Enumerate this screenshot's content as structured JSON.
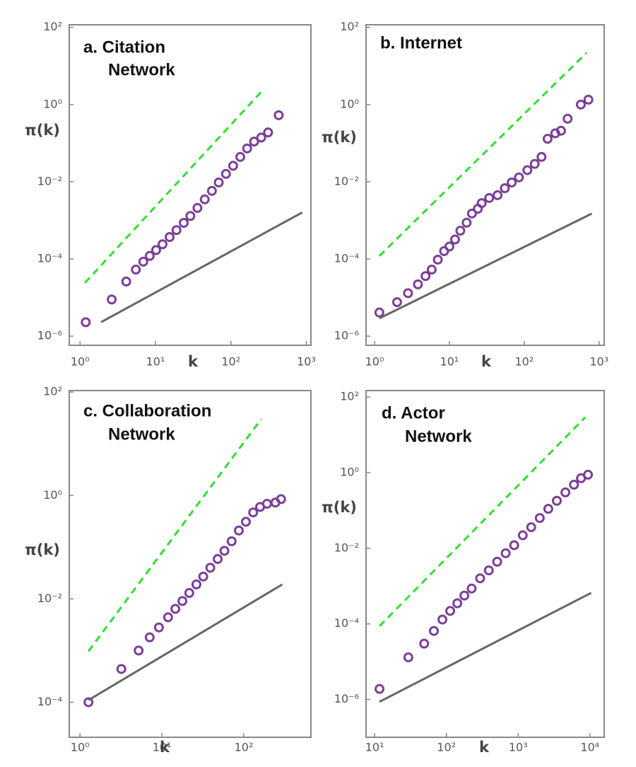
{
  "chart_data": [
    {
      "type": "scatter",
      "title": [
        "a. Citation",
        "Network"
      ],
      "xlabel": "k",
      "ylabel": "π(k)",
      "xscale": "log",
      "yscale": "log",
      "xlim": [
        0.72,
        1150
      ],
      "ylim": [
        5.8e-07,
        117
      ],
      "xticks": [
        {
          "value": 1,
          "label": "10⁰"
        },
        {
          "value": 10,
          "label": "10¹"
        },
        {
          "value": 100,
          "label": "10²"
        },
        {
          "value": 1000,
          "label": "10³"
        }
      ],
      "yticks": [
        {
          "value": 1e-06,
          "label": "10⁻⁶"
        },
        {
          "value": 0.0001,
          "label": "10⁻⁴"
        },
        {
          "value": 0.01,
          "label": "10⁻²"
        },
        {
          "value": 1,
          "label": "10⁰"
        },
        {
          "value": 100,
          "label": "10²"
        }
      ],
      "series": [
        {
          "color": "#7b3f98",
          "marker": "circle",
          "x": [
            1.19,
            2.63,
            4.1,
            5.5,
            6.9,
            8.4,
            10.2,
            12.4,
            15.4,
            19,
            23.7,
            29,
            36,
            45,
            56,
            69,
            86,
            107,
            133,
            164,
            203,
            252,
            311,
            430
          ],
          "values": [
            2.3e-06,
            8.9e-06,
            2.6e-05,
            5.3e-05,
            8.5e-05,
            0.00012,
            0.00017,
            0.00024,
            0.00037,
            0.00056,
            0.00086,
            0.0013,
            0.0021,
            0.0035,
            0.0058,
            0.0096,
            0.016,
            0.026,
            0.044,
            0.073,
            0.11,
            0.14,
            0.19,
            0.53
          ]
        },
        {
          "color": "#33dd33",
          "line_style": "dashed",
          "x": [
            1.16,
            250
          ],
          "values": [
            2.4e-05,
            2.1
          ]
        },
        {
          "color": "#666666",
          "line_style": "solid",
          "x": [
            1.9,
            880
          ],
          "values": [
            2.3e-06,
            0.0016
          ]
        }
      ]
    },
    {
      "type": "scatter",
      "title": [
        "b. Internet"
      ],
      "xlabel": "k",
      "ylabel": "π(k)",
      "xscale": "log",
      "yscale": "log",
      "xlim": [
        0.77,
        1170
      ],
      "ylim": [
        5.8e-07,
        117
      ],
      "xticks": [
        {
          "value": 1,
          "label": "10⁰"
        },
        {
          "value": 10,
          "label": "10¹"
        },
        {
          "value": 100,
          "label": "10²"
        },
        {
          "value": 1000,
          "label": "10³"
        }
      ],
      "yticks": [
        {
          "value": 1e-06,
          "label": "10⁻⁶"
        },
        {
          "value": 0.0001,
          "label": "10⁻⁴"
        },
        {
          "value": 0.01,
          "label": "10⁻²"
        },
        {
          "value": 1,
          "label": "10⁰"
        },
        {
          "value": 100,
          "label": "10²"
        }
      ],
      "series": [
        {
          "color": "#7b3f98",
          "marker": "circle",
          "x": [
            1.16,
            2.0,
            2.8,
            3.8,
            4.8,
            5.8,
            7.0,
            8.5,
            10,
            11.9,
            14,
            17,
            20,
            24,
            27,
            34,
            44,
            55,
            68,
            85,
            110,
            138,
            170,
            205,
            260,
            310,
            380,
            570,
            720
          ],
          "values": [
            4.1e-06,
            7.6e-06,
            1.3e-05,
            2.2e-05,
            3.6e-05,
            5.3e-05,
            9.6e-05,
            0.00016,
            0.00021,
            0.00032,
            0.00054,
            0.00087,
            0.0015,
            0.002,
            0.0028,
            0.0038,
            0.0045,
            0.0068,
            0.0096,
            0.013,
            0.02,
            0.029,
            0.044,
            0.13,
            0.18,
            0.21,
            0.43,
            1.0,
            1.34
          ]
        },
        {
          "color": "#33dd33",
          "line_style": "dashed",
          "x": [
            1.16,
            680
          ],
          "values": [
            0.00012,
            22
          ]
        },
        {
          "color": "#666666",
          "line_style": "solid",
          "x": [
            1.16,
            800
          ],
          "values": [
            2.9e-06,
            0.0015
          ]
        }
      ]
    },
    {
      "type": "scatter",
      "title": [
        "c. Collaboration",
        "Network"
      ],
      "xlabel": "k",
      "ylabel": "π(k)",
      "xscale": "log",
      "yscale": "log",
      "xlim": [
        0.74,
        660
      ],
      "ylim": [
        2.1e-05,
        107
      ],
      "xticks": [
        {
          "value": 1,
          "label": "10⁰"
        },
        {
          "value": 10,
          "label": "10¹"
        },
        {
          "value": 100,
          "label": "10²"
        }
      ],
      "yticks": [
        {
          "value": 0.0001,
          "label": "10⁻⁴"
        },
        {
          "value": 0.01,
          "label": "10⁻²"
        },
        {
          "value": 1,
          "label": "10⁰"
        },
        {
          "value": 100,
          "label": "10²"
        }
      ],
      "series": [
        {
          "color": "#7b3f98",
          "marker": "circle",
          "x": [
            1.27,
            3.2,
            5.2,
            7.1,
            9.2,
            11.9,
            14.6,
            17.8,
            21.6,
            26.4,
            32,
            39,
            48,
            58,
            71,
            87,
            106,
            130,
            158,
            192,
            243,
            285
          ],
          "values": [
            0.0001,
            0.00044,
            0.001,
            0.0018,
            0.0028,
            0.0044,
            0.0064,
            0.0091,
            0.013,
            0.019,
            0.027,
            0.04,
            0.059,
            0.085,
            0.13,
            0.21,
            0.31,
            0.47,
            0.6,
            0.69,
            0.73,
            0.85
          ]
        },
        {
          "color": "#33dd33",
          "line_style": "dashed",
          "x": [
            1.27,
            163
          ],
          "values": [
            0.00097,
            30
          ]
        },
        {
          "color": "#666666",
          "line_style": "solid",
          "x": [
            1.27,
            295
          ],
          "values": [
            0.00011,
            0.019
          ]
        }
      ]
    },
    {
      "type": "scatter",
      "title": [
        "d. Actor",
        "Network"
      ],
      "xlabel": "k",
      "ylabel": "π(k)",
      "xscale": "log",
      "yscale": "log",
      "xlim": [
        7.6,
        15800
      ],
      "ylim": [
        1e-07,
        148
      ],
      "xticks": [
        {
          "value": 10,
          "label": "10¹"
        },
        {
          "value": 100,
          "label": "10²"
        },
        {
          "value": 1000,
          "label": "10³"
        },
        {
          "value": 10000,
          "label": "10⁴"
        }
      ],
      "yticks": [
        {
          "value": 1e-06,
          "label": "10⁻⁶"
        },
        {
          "value": 0.0001,
          "label": "10⁻⁴"
        },
        {
          "value": 0.01,
          "label": "10⁻²"
        },
        {
          "value": 1,
          "label": "10⁰"
        },
        {
          "value": 100,
          "label": "10²"
        }
      ],
      "series": [
        {
          "color": "#7b3f98",
          "marker": "circle",
          "x": [
            11.7,
            29.5,
            49,
            67,
            88,
            113,
            142,
            178,
            225,
            295,
            390,
            510,
            670,
            880,
            1160,
            1520,
            2000,
            2630,
            3460,
            4550,
            5990,
            7500,
            9400
          ],
          "values": [
            1.9e-06,
            1.3e-05,
            3e-05,
            6.5e-05,
            0.00013,
            0.00022,
            0.00035,
            0.00056,
            0.00086,
            0.0016,
            0.0026,
            0.0044,
            0.0074,
            0.012,
            0.022,
            0.036,
            0.063,
            0.11,
            0.18,
            0.3,
            0.48,
            0.71,
            0.88
          ]
        },
        {
          "color": "#33dd33",
          "line_style": "dashed",
          "x": [
            11.7,
            8600
          ],
          "values": [
            8.7e-05,
            29
          ]
        },
        {
          "color": "#666666",
          "line_style": "solid",
          "x": [
            11.7,
            10400
          ],
          "values": [
            8.7e-07,
            0.00066
          ]
        }
      ]
    }
  ]
}
